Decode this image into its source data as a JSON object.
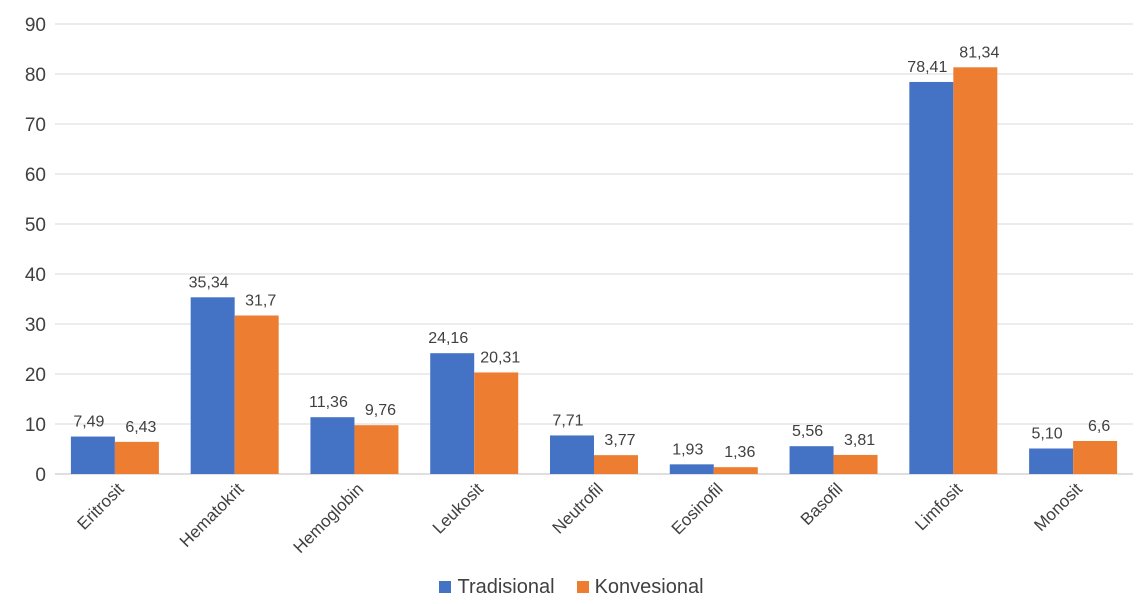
{
  "chart_data": {
    "type": "bar",
    "categories": [
      "Eritrosit",
      "Hematokrit",
      "Hemoglobin",
      "Leukosit",
      "Neutrofil",
      "Eosinofil",
      "Basofil",
      "Limfosit",
      "Monosit"
    ],
    "series": [
      {
        "name": "Tradisional",
        "color": "#4472C4",
        "values": [
          7.49,
          35.34,
          11.36,
          24.16,
          7.71,
          1.93,
          5.56,
          78.41,
          5.1
        ],
        "labels": [
          "7,49",
          "35,34",
          "11,36",
          "24,16",
          "7,71",
          "1,93",
          "5,56",
          "78,41",
          "5,10"
        ]
      },
      {
        "name": "Konvesional",
        "color": "#ED7D31",
        "values": [
          6.43,
          31.7,
          9.76,
          20.31,
          3.77,
          1.36,
          3.81,
          81.34,
          6.6
        ],
        "labels": [
          "6,43",
          "31,7",
          "9,76",
          "20,31",
          "3,77",
          "1,36",
          "3,81",
          "81,34",
          "6,6"
        ]
      }
    ],
    "ylim": [
      0,
      90
    ],
    "yticks": [
      "0",
      "10",
      "20",
      "30",
      "40",
      "50",
      "60",
      "70",
      "80",
      "90"
    ],
    "grid": true,
    "legend_position": "bottom"
  }
}
